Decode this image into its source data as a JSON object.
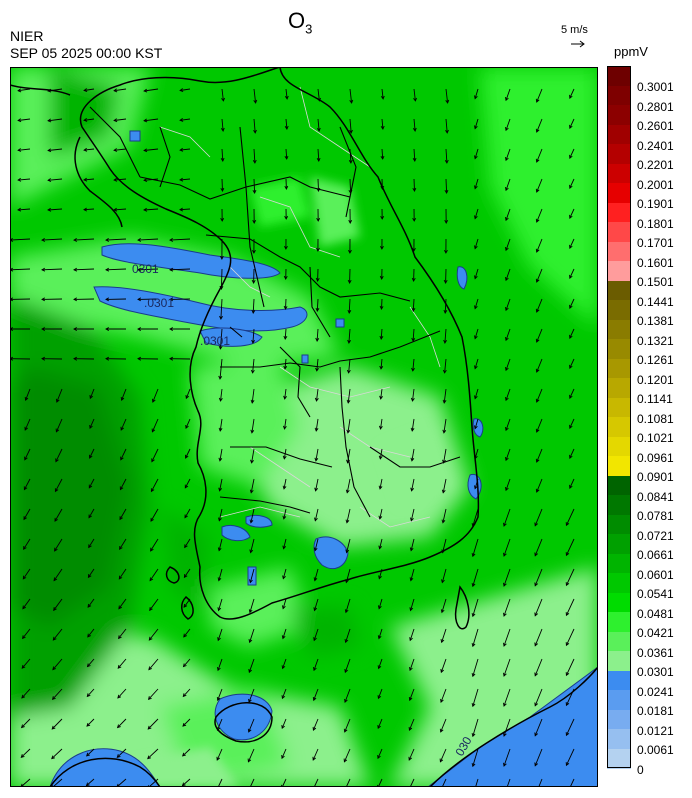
{
  "header": {
    "title_main": "O",
    "title_sub": "3",
    "agency": "NIER",
    "datetime": "SEP 05 2025 00:00 KST",
    "wind_reference": "5 m/s",
    "unit": "ppmV"
  },
  "map": {
    "contour_labels": [
      "0301",
      ".0301",
      ".0301",
      "030"
    ],
    "colors": {
      "land_outline": "#000000",
      "admin_lines": "#d8d8d8",
      "low_band": "#3c8cf0"
    }
  },
  "legend": {
    "ticks": [
      "0.3001",
      "0.2801",
      "0.2601",
      "0.2401",
      "0.2201",
      "0.2001",
      "0.1901",
      "0.1801",
      "0.1701",
      "0.1601",
      "0.1501",
      "0.1441",
      "0.1381",
      "0.1321",
      "0.1261",
      "0.1201",
      "0.1141",
      "0.1081",
      "0.1021",
      "0.0961",
      "0.0901",
      "0.0841",
      "0.0781",
      "0.0721",
      "0.0661",
      "0.0601",
      "0.0541",
      "0.0481",
      "0.0421",
      "0.0361",
      "0.0301",
      "0.0241",
      "0.0181",
      "0.0121",
      "0.0061",
      "0"
    ],
    "colors": [
      "#6e0000",
      "#7e0000",
      "#8c0000",
      "#a00000",
      "#b40000",
      "#cc0000",
      "#e60000",
      "#ff2020",
      "#ff4848",
      "#ff6e6e",
      "#ff9c9c",
      "#6b5c00",
      "#7a6c00",
      "#8a7c00",
      "#988a00",
      "#a89800",
      "#b8a800",
      "#c8b800",
      "#d6c800",
      "#e4d800",
      "#f2e600",
      "#006400",
      "#007800",
      "#008c00",
      "#00a000",
      "#00b400",
      "#00c800",
      "#00dc00",
      "#2ef02e",
      "#5af05a",
      "#8cf08c",
      "#3c8cf0",
      "#5a9cf0",
      "#78acf0",
      "#96bff0",
      "#b4d2f0"
    ]
  }
}
